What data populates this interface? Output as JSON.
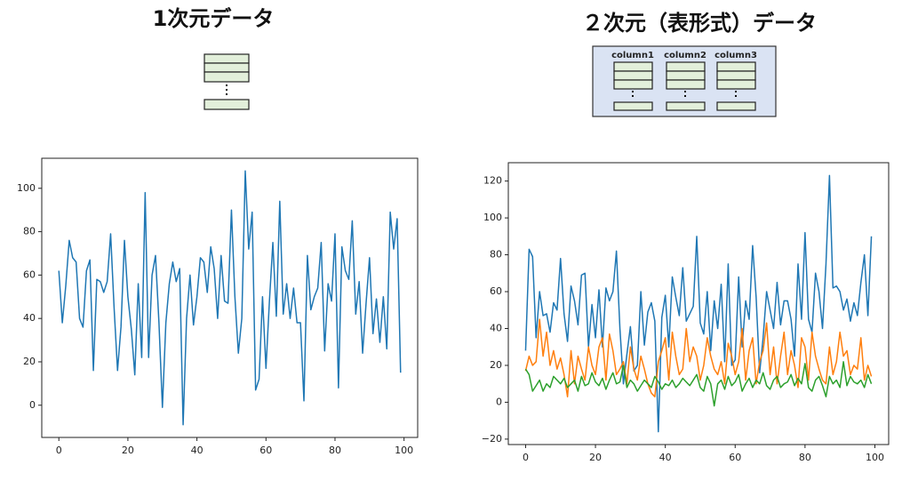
{
  "chart_data": [
    {
      "type": "line",
      "title": "1次元データ",
      "x": [
        0,
        1,
        2,
        3,
        4,
        5,
        6,
        7,
        8,
        9,
        10,
        11,
        12,
        13,
        14,
        15,
        16,
        17,
        18,
        19,
        20,
        21,
        22,
        23,
        24,
        25,
        26,
        27,
        28,
        29,
        30,
        31,
        32,
        33,
        34,
        35,
        36,
        37,
        38,
        39,
        40,
        41,
        42,
        43,
        44,
        45,
        46,
        47,
        48,
        49,
        50,
        51,
        52,
        53,
        54,
        55,
        56,
        57,
        58,
        59,
        60,
        61,
        62,
        63,
        64,
        65,
        66,
        67,
        68,
        69,
        70,
        71,
        72,
        73,
        74,
        75,
        76,
        77,
        78,
        79,
        80,
        81,
        82,
        83,
        84,
        85,
        86,
        87,
        88,
        89,
        90,
        91,
        92,
        93,
        94,
        95,
        96,
        97,
        98,
        99
      ],
      "series": [
        {
          "color": "#1f77b4",
          "values": [
            62,
            38,
            55,
            76,
            68,
            66,
            40,
            36,
            62,
            67,
            16,
            58,
            57,
            52,
            57,
            79,
            45,
            16,
            36,
            76,
            50,
            35,
            14,
            56,
            22,
            98,
            22,
            60,
            69,
            38,
            -1,
            38,
            56,
            66,
            57,
            63,
            -9,
            40,
            60,
            37,
            50,
            68,
            66,
            52,
            73,
            63,
            40,
            69,
            48,
            47,
            90,
            50,
            24,
            40,
            108,
            72,
            89,
            7,
            12,
            50,
            17,
            48,
            75,
            41,
            94,
            42,
            56,
            40,
            54,
            38,
            38,
            2,
            69,
            44,
            50,
            54,
            75,
            25,
            56,
            48,
            79,
            8,
            73,
            62,
            58,
            85,
            42,
            57,
            24,
            47,
            68,
            33,
            49,
            29,
            50,
            26,
            89,
            72,
            86,
            15
          ]
        }
      ],
      "xlim": [
        -4.95,
        103.95
      ],
      "xticks": [
        0,
        20,
        40,
        60,
        80,
        100
      ],
      "ylim": [
        -14.85,
        113.85
      ],
      "yticks": [
        0,
        20,
        40,
        60,
        80,
        100
      ]
    },
    {
      "type": "line",
      "title": "２次元（表形式）データ",
      "x": [
        0,
        1,
        2,
        3,
        4,
        5,
        6,
        7,
        8,
        9,
        10,
        11,
        12,
        13,
        14,
        15,
        16,
        17,
        18,
        19,
        20,
        21,
        22,
        23,
        24,
        25,
        26,
        27,
        28,
        29,
        30,
        31,
        32,
        33,
        34,
        35,
        36,
        37,
        38,
        39,
        40,
        41,
        42,
        43,
        44,
        45,
        46,
        47,
        48,
        49,
        50,
        51,
        52,
        53,
        54,
        55,
        56,
        57,
        58,
        59,
        60,
        61,
        62,
        63,
        64,
        65,
        66,
        67,
        68,
        69,
        70,
        71,
        72,
        73,
        74,
        75,
        76,
        77,
        78,
        79,
        80,
        81,
        82,
        83,
        84,
        85,
        86,
        87,
        88,
        89,
        90,
        91,
        92,
        93,
        94,
        95,
        96,
        97,
        98,
        99
      ],
      "series": [
        {
          "color": "#1f77b4",
          "values": [
            28,
            83,
            79,
            35,
            60,
            47,
            48,
            38,
            54,
            50,
            78,
            48,
            33,
            63,
            55,
            42,
            69,
            70,
            30,
            53,
            35,
            61,
            30,
            62,
            55,
            60,
            82,
            40,
            10,
            26,
            41,
            17,
            20,
            60,
            31,
            49,
            54,
            44,
            -16,
            46,
            58,
            30,
            68,
            57,
            47,
            73,
            44,
            48,
            52,
            90,
            43,
            37,
            60,
            28,
            55,
            40,
            64,
            22,
            75,
            20,
            23,
            68,
            30,
            55,
            45,
            85,
            57,
            16,
            35,
            60,
            50,
            40,
            65,
            42,
            55,
            55,
            45,
            25,
            75,
            45,
            92,
            45,
            38,
            70,
            60,
            40,
            75,
            123,
            62,
            63,
            60,
            50,
            56,
            44,
            54,
            47,
            65,
            80,
            47,
            90
          ]
        },
        {
          "color": "#ff7f0e",
          "values": [
            17,
            25,
            20,
            22,
            45,
            25,
            38,
            20,
            28,
            18,
            24,
            15,
            3,
            28,
            10,
            25,
            18,
            12,
            30,
            20,
            15,
            30,
            35,
            12,
            37,
            28,
            15,
            18,
            22,
            10,
            30,
            18,
            12,
            25,
            18,
            10,
            5,
            3,
            22,
            28,
            35,
            12,
            38,
            25,
            15,
            18,
            40,
            22,
            30,
            25,
            12,
            20,
            35,
            25,
            18,
            15,
            22,
            10,
            32,
            25,
            15,
            22,
            40,
            12,
            28,
            35,
            10,
            22,
            28,
            43,
            15,
            30,
            10,
            25,
            38,
            15,
            28,
            20,
            8,
            35,
            30,
            12,
            38,
            25,
            18,
            12,
            10,
            30,
            15,
            22,
            38,
            25,
            28,
            15,
            20,
            18,
            35,
            12,
            20,
            14
          ]
        },
        {
          "color": "#2ca02c",
          "values": [
            18,
            15,
            6,
            9,
            12,
            6,
            10,
            8,
            14,
            12,
            10,
            13,
            8,
            10,
            12,
            6,
            14,
            9,
            10,
            16,
            11,
            9,
            13,
            7,
            12,
            16,
            10,
            11,
            20,
            8,
            12,
            10,
            6,
            9,
            12,
            10,
            8,
            14,
            11,
            7,
            10,
            9,
            12,
            8,
            10,
            13,
            11,
            9,
            12,
            15,
            8,
            6,
            14,
            10,
            -2,
            10,
            12,
            7,
            14,
            9,
            11,
            15,
            6,
            10,
            13,
            8,
            12,
            10,
            16,
            9,
            7,
            12,
            14,
            8,
            10,
            11,
            15,
            9,
            13,
            10,
            21,
            8,
            6,
            12,
            14,
            9,
            3,
            14,
            10,
            12,
            8,
            22,
            9,
            14,
            11,
            10,
            12,
            8,
            15,
            10
          ]
        }
      ],
      "xlim": [
        -4.95,
        103.95
      ],
      "xticks": [
        0,
        20,
        40,
        60,
        80,
        100
      ],
      "ylim": [
        -22.95,
        129.95
      ],
      "yticks": [
        {
          "value": -20,
          "label": "−20"
        },
        0,
        20,
        40,
        60,
        80,
        100,
        120
      ]
    }
  ],
  "diagram": {
    "columns": [
      "column1",
      "column2",
      "column3"
    ]
  }
}
